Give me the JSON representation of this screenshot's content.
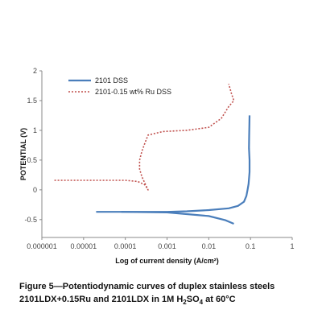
{
  "caption": {
    "line1": "Figure 5—Potentiodynamic curves of duplex stainless steels",
    "line2_prefix": "2101LDX+0.15Ru and 2101LDX in 1M H",
    "line2_sub1": "2",
    "line2_mid": "SO",
    "line2_sub2": "4",
    "line2_suffix": " at 60°C"
  },
  "chart_data": {
    "type": "line",
    "title": "",
    "xlabel": "Log of current density (A/cm²)",
    "ylabel": "POTENTIAL (V)",
    "xscale": "log",
    "xlim": [
      1e-06,
      1
    ],
    "ylim": [
      -0.8,
      2
    ],
    "xticks": [
      {
        "value": 1e-06,
        "label": "0.000001"
      },
      {
        "value": 1e-05,
        "label": "0.00001"
      },
      {
        "value": 0.0001,
        "label": "0.0001"
      },
      {
        "value": 0.001,
        "label": "0.001"
      },
      {
        "value": 0.01,
        "label": "0.01"
      },
      {
        "value": 0.1,
        "label": "0.1"
      },
      {
        "value": 1,
        "label": "1"
      }
    ],
    "yticks": [
      {
        "value": 2,
        "label": "2"
      },
      {
        "value": 1.5,
        "label": "1.5"
      },
      {
        "value": 1,
        "label": "1"
      },
      {
        "value": 0.5,
        "label": "0.5"
      },
      {
        "value": 0,
        "label": "0"
      },
      {
        "value": -0.5,
        "label": "-0.5"
      }
    ],
    "grid": false,
    "legend_position": "top-left",
    "series": [
      {
        "name": "2101 DSS",
        "color": "#4a7ebb",
        "style": "solid",
        "points": [
          [
            2e-05,
            -0.37
          ],
          [
            0.0001,
            -0.37
          ],
          [
            0.001,
            -0.37
          ],
          [
            0.003,
            -0.36
          ],
          [
            0.01,
            -0.34
          ],
          [
            0.03,
            -0.31
          ],
          [
            0.05,
            -0.27
          ],
          [
            0.07,
            -0.2
          ],
          [
            0.08,
            -0.1
          ],
          [
            0.085,
            0.0
          ],
          [
            0.09,
            0.1
          ],
          [
            0.095,
            0.3
          ],
          [
            0.095,
            0.5
          ],
          [
            0.092,
            0.7
          ],
          [
            0.093,
            0.9
          ],
          [
            0.094,
            1.1
          ],
          [
            0.095,
            1.25
          ]
        ],
        "cathodic_branch": [
          [
            8e-05,
            -0.37
          ],
          [
            0.001,
            -0.38
          ],
          [
            0.01,
            -0.44
          ],
          [
            0.025,
            -0.51
          ],
          [
            0.04,
            -0.57
          ]
        ]
      },
      {
        "name": "2101-0.15 wt% Ru DSS",
        "color": "#c0504d",
        "style": "dotted",
        "points": [
          [
            2e-06,
            0.16
          ],
          [
            2e-05,
            0.16
          ],
          [
            0.0001,
            0.16
          ],
          [
            0.0002,
            0.14
          ],
          [
            0.0003,
            0.08
          ],
          [
            0.00035,
            0.0
          ],
          [
            0.0003,
            0.1
          ],
          [
            0.00025,
            0.22
          ],
          [
            0.00022,
            0.35
          ],
          [
            0.00022,
            0.5
          ],
          [
            0.00025,
            0.65
          ],
          [
            0.0003,
            0.8
          ],
          [
            0.00035,
            0.92
          ],
          [
            0.0008,
            0.98
          ],
          [
            0.003,
            1.0
          ],
          [
            0.01,
            1.05
          ],
          [
            0.02,
            1.2
          ],
          [
            0.03,
            1.4
          ],
          [
            0.04,
            1.5
          ],
          [
            0.035,
            1.62
          ],
          [
            0.03,
            1.78
          ]
        ]
      }
    ]
  }
}
